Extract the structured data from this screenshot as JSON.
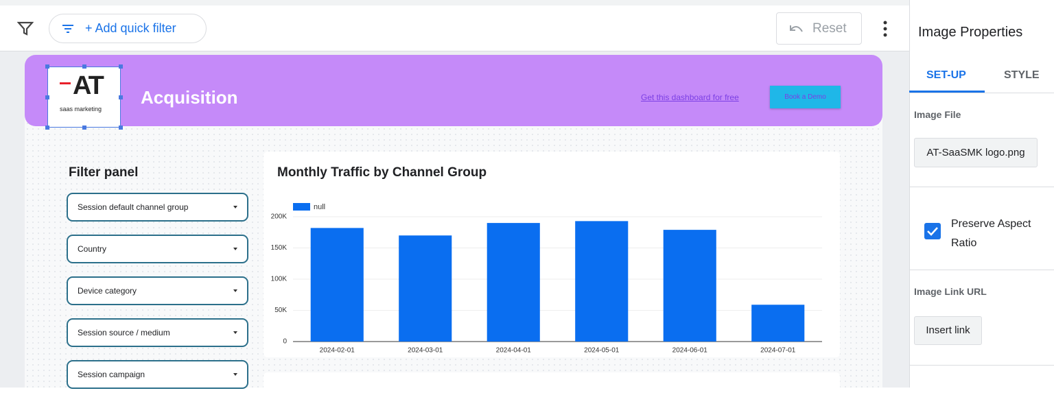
{
  "toolbar": {
    "quick_filter": "+ Add quick filter",
    "reset": "Reset"
  },
  "header": {
    "logo": {
      "brand": "AT",
      "tagline": "saas marketing"
    },
    "title": "Acquisition",
    "link": "Get this dashboard for free",
    "button": "Book a Demo"
  },
  "filter_panel": {
    "title": "Filter panel",
    "dropdowns": [
      "Session default channel group",
      "Country",
      "Device category",
      "Session source / medium",
      "Session campaign"
    ]
  },
  "chart_data": {
    "type": "bar",
    "title": "Monthly Traffic by Channel Group",
    "categories": [
      "2024-02-01",
      "2024-03-01",
      "2024-04-01",
      "2024-05-01",
      "2024-06-01",
      "2024-07-01"
    ],
    "series": [
      {
        "name": "null",
        "color": "#0a6ef0",
        "values": [
          182000,
          170000,
          190000,
          193000,
          179000,
          59000
        ]
      }
    ],
    "ylim": [
      0,
      200000
    ],
    "yticks": [
      0,
      {
        "value": 50000,
        "label": "50K"
      },
      {
        "value": 100000,
        "label": "100K"
      },
      {
        "value": 150000,
        "label": "150K"
      },
      {
        "value": 200000,
        "label": "200K"
      }
    ],
    "grid": true,
    "legend": "top-left"
  },
  "properties_panel": {
    "title": "Image Properties",
    "tabs": [
      "SET-UP",
      "STYLE"
    ],
    "image_file": {
      "label": "Image File",
      "button": "AT-SaaSMK logo.png"
    },
    "preserve_aspect": {
      "label": "Preserve Aspect Ratio",
      "checked": true
    },
    "image_link": {
      "label": "Image Link URL",
      "button": "Insert link"
    }
  }
}
